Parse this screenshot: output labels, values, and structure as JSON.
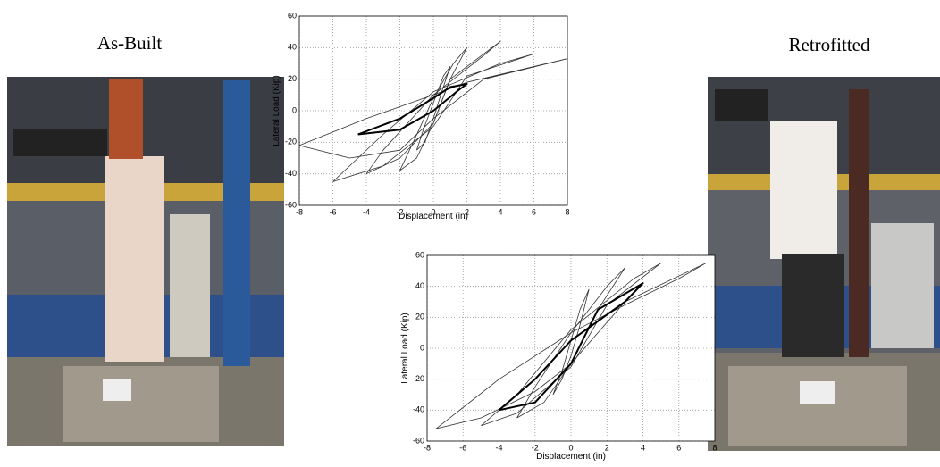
{
  "labels": {
    "left": "As-Built",
    "right": "Retrofitted"
  },
  "chart_data": [
    {
      "type": "line",
      "xlabel": "Displacement (in)",
      "ylabel": "Lateral Load (Kip)",
      "xlim": [
        -8,
        8
      ],
      "ylim": [
        -60,
        60
      ],
      "xticks": [
        -8,
        -6,
        -4,
        -2,
        0,
        2,
        4,
        6,
        8
      ],
      "yticks": [
        -60,
        -40,
        -20,
        0,
        20,
        40,
        60
      ],
      "grid": true,
      "series": [
        {
          "color": "#333333",
          "x": [
            -1,
            -0.5,
            0,
            0.5,
            1,
            0.6,
            0,
            -0.6,
            -1
          ],
          "values": [
            -25,
            -20,
            -5,
            12,
            28,
            22,
            5,
            -12,
            -25
          ]
        },
        {
          "color": "#333333",
          "x": [
            -2,
            -1,
            0,
            1,
            2,
            1.2,
            0,
            -1.2,
            -2
          ],
          "values": [
            -38,
            -30,
            -8,
            20,
            40,
            30,
            8,
            -20,
            -38
          ]
        },
        {
          "color": "#333333",
          "x": [
            -4,
            -2,
            0,
            1,
            4,
            3,
            0,
            -3,
            -4
          ],
          "values": [
            -40,
            -30,
            -8,
            20,
            44,
            35,
            10,
            -25,
            -40
          ]
        },
        {
          "color": "#333333",
          "x": [
            -6,
            -3,
            0,
            2,
            6,
            4,
            0,
            -3,
            -6
          ],
          "values": [
            -45,
            -35,
            -10,
            22,
            36,
            30,
            12,
            -15,
            -45
          ]
        },
        {
          "color": "#333333",
          "x": [
            -8,
            -5,
            -2,
            0,
            3,
            8,
            6,
            2,
            0,
            -4,
            -8
          ],
          "values": [
            -22,
            -30,
            -25,
            -5,
            20,
            33,
            28,
            18,
            10,
            -5,
            -22
          ]
        },
        {
          "color": "#000000",
          "width": 2,
          "x": [
            -4.5,
            -2,
            0,
            1.5,
            2,
            1,
            0,
            -2,
            -4.5
          ],
          "values": [
            -15,
            -12,
            0,
            13,
            17,
            15,
            8,
            -5,
            -15
          ]
        }
      ]
    },
    {
      "type": "line",
      "xlabel": "Displacement (in)",
      "ylabel": "Lateral Load (Kip)",
      "xlim": [
        -8,
        8
      ],
      "ylim": [
        -60,
        60
      ],
      "xticks": [
        -8,
        -6,
        -4,
        -2,
        0,
        2,
        4,
        6,
        8
      ],
      "yticks": [
        -60,
        -40,
        -20,
        0,
        20,
        40,
        60
      ],
      "grid": true,
      "series": [
        {
          "color": "#333333",
          "x": [
            -1,
            -0.5,
            0,
            0.5,
            1,
            0.5,
            0,
            -0.5,
            -1
          ],
          "values": [
            -30,
            -20,
            -5,
            15,
            38,
            25,
            5,
            -15,
            -30
          ]
        },
        {
          "color": "#333333",
          "x": [
            -3,
            -1.5,
            0,
            1.5,
            3,
            2,
            0,
            -2,
            -3
          ],
          "values": [
            -45,
            -35,
            -10,
            25,
            52,
            40,
            10,
            -25,
            -45
          ]
        },
        {
          "color": "#333333",
          "x": [
            -5,
            -3,
            0,
            2,
            5,
            3.5,
            0,
            -3,
            -5
          ],
          "values": [
            -50,
            -42,
            -12,
            28,
            55,
            45,
            12,
            -30,
            -50
          ]
        },
        {
          "color": "#333333",
          "x": [
            -7.5,
            -5,
            -2,
            0,
            3,
            7.5,
            6,
            3,
            0,
            -4,
            -7.5
          ],
          "values": [
            -52,
            -45,
            -28,
            -10,
            30,
            55,
            45,
            28,
            10,
            -20,
            -52
          ]
        },
        {
          "color": "#000000",
          "width": 2,
          "x": [
            -4,
            -2,
            0,
            1.5,
            4,
            3,
            0,
            -2,
            -4
          ],
          "values": [
            -40,
            -35,
            -10,
            25,
            42,
            30,
            5,
            -20,
            -40
          ]
        }
      ]
    }
  ]
}
